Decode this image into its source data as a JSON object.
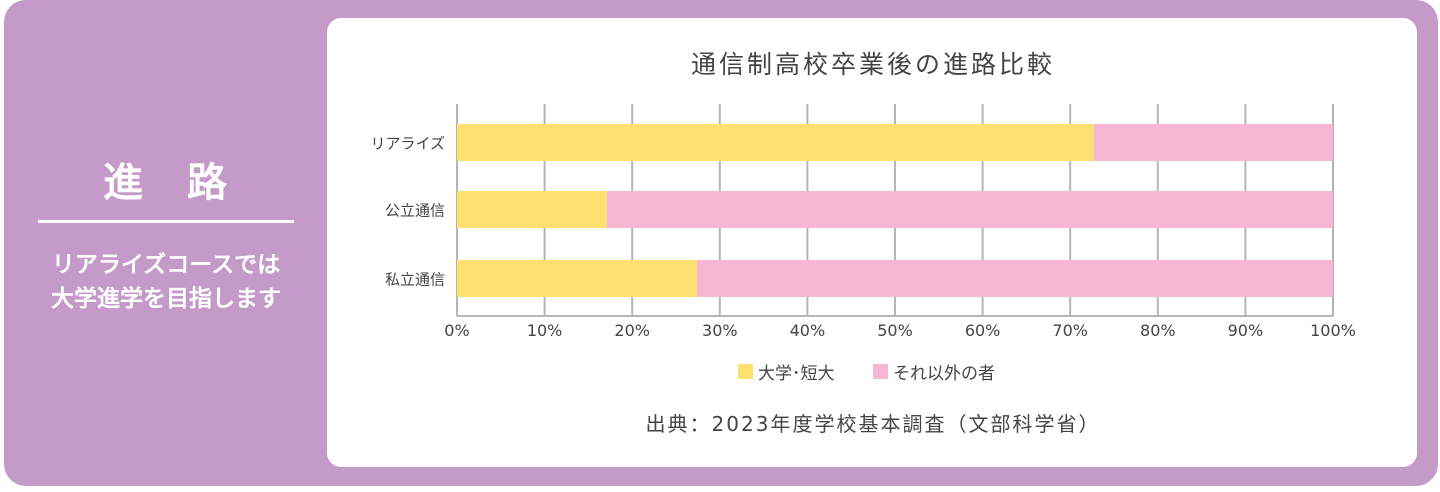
{
  "sidebar": {
    "title": "進　路",
    "line1": "リアライズコースでは",
    "line2": "大学進学を目指します"
  },
  "colors": {
    "frame": "#c49ac8",
    "university": "#fde070",
    "other": "#f6b7d3",
    "grid": "#b5b5b5"
  },
  "chart_data": {
    "type": "bar",
    "orientation": "horizontal",
    "stacked": true,
    "title": "通信制高校卒業後の進路比較",
    "categories": [
      "リアライズ",
      "公立通信",
      "私立通信"
    ],
    "series": [
      {
        "name": "大学･短大",
        "values": [
          72.7,
          17.1,
          27.4
        ]
      },
      {
        "name": "それ以外の者",
        "values": [
          27.3,
          82.9,
          72.6
        ]
      }
    ],
    "xlim": [
      0,
      100
    ],
    "x_ticks": [
      "0%",
      "10%",
      "20%",
      "30%",
      "40%",
      "50%",
      "60%",
      "70%",
      "80%",
      "90%",
      "100%"
    ],
    "grid": "vertical",
    "legend_position": "bottom",
    "source": "出典：2023年度学校基本調査（文部科学省）"
  }
}
